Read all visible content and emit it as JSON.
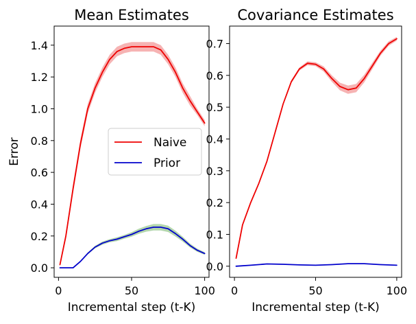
{
  "chart_data": [
    {
      "type": "line",
      "title": "Mean Estimates",
      "xlabel": "Incremental step (t-K)",
      "ylabel": "Error",
      "xlim": [
        -3,
        103
      ],
      "ylim": [
        -0.06,
        1.52
      ],
      "xticks": [
        0,
        50,
        100
      ],
      "yticks": [
        0.0,
        0.2,
        0.4,
        0.6,
        0.8,
        1.0,
        1.2,
        1.4
      ],
      "ytick_labels": [
        "0.0",
        "0.2",
        "0.4",
        "0.6",
        "0.8",
        "1.0",
        "1.2",
        "1.4"
      ],
      "legend": {
        "position": "center-right",
        "entries": [
          "Naive",
          "Prior"
        ]
      },
      "series": [
        {
          "name": "Naive",
          "color": "#ee0000",
          "band_color": "#f4a0a0",
          "x": [
            1,
            5,
            10,
            15,
            20,
            25,
            30,
            35,
            40,
            45,
            50,
            55,
            60,
            65,
            70,
            75,
            80,
            85,
            90,
            95,
            100
          ],
          "y": [
            0.02,
            0.2,
            0.5,
            0.78,
            1.0,
            1.13,
            1.23,
            1.31,
            1.36,
            1.38,
            1.39,
            1.39,
            1.39,
            1.39,
            1.37,
            1.31,
            1.23,
            1.13,
            1.05,
            0.98,
            0.91
          ],
          "spread": [
            0.01,
            0.02,
            0.03,
            0.03,
            0.03,
            0.03,
            0.03,
            0.03,
            0.03,
            0.03,
            0.03,
            0.03,
            0.03,
            0.03,
            0.03,
            0.03,
            0.03,
            0.03,
            0.03,
            0.02,
            0.02
          ]
        },
        {
          "name": "Prior",
          "color": "#0000cc",
          "band_color": "#a0cc98",
          "x": [
            1,
            5,
            10,
            15,
            20,
            25,
            30,
            35,
            40,
            45,
            50,
            55,
            60,
            65,
            70,
            75,
            80,
            85,
            90,
            95,
            100
          ],
          "y": [
            0.0,
            0.0,
            0.0,
            0.04,
            0.09,
            0.13,
            0.155,
            0.17,
            0.18,
            0.195,
            0.21,
            0.23,
            0.245,
            0.255,
            0.255,
            0.245,
            0.215,
            0.18,
            0.14,
            0.11,
            0.09
          ],
          "spread": [
            0.0,
            0.0,
            0.002,
            0.004,
            0.006,
            0.008,
            0.01,
            0.01,
            0.012,
            0.012,
            0.014,
            0.016,
            0.018,
            0.02,
            0.02,
            0.02,
            0.018,
            0.015,
            0.012,
            0.01,
            0.008
          ]
        }
      ]
    },
    {
      "type": "line",
      "title": "Covariance Estimates",
      "xlabel": "Incremental step (t-K)",
      "ylabel": "",
      "xlim": [
        -3,
        103
      ],
      "ylim": [
        -0.035,
        0.755
      ],
      "xticks": [
        0,
        50,
        100
      ],
      "yticks": [
        0.0,
        0.1,
        0.2,
        0.3,
        0.4,
        0.5,
        0.6,
        0.7
      ],
      "ytick_labels": [
        "0.0",
        "0.1",
        "0.2",
        "0.3",
        "0.4",
        "0.5",
        "0.6",
        "0.7"
      ],
      "series": [
        {
          "name": "Naive",
          "color": "#ee0000",
          "band_color": "#f4a0a0",
          "x": [
            1,
            5,
            10,
            15,
            20,
            25,
            30,
            35,
            40,
            45,
            50,
            55,
            60,
            65,
            70,
            75,
            80,
            85,
            90,
            95,
            100
          ],
          "y": [
            0.025,
            0.13,
            0.2,
            0.26,
            0.33,
            0.42,
            0.51,
            0.58,
            0.62,
            0.638,
            0.635,
            0.62,
            0.59,
            0.565,
            0.555,
            0.56,
            0.59,
            0.63,
            0.67,
            0.7,
            0.715
          ],
          "spread": [
            0.002,
            0.003,
            0.004,
            0.004,
            0.004,
            0.004,
            0.004,
            0.005,
            0.005,
            0.006,
            0.006,
            0.008,
            0.01,
            0.012,
            0.013,
            0.013,
            0.012,
            0.01,
            0.008,
            0.007,
            0.006
          ]
        },
        {
          "name": "Prior",
          "color": "#0000cc",
          "band_color": "#a0cc98",
          "x": [
            1,
            10,
            20,
            30,
            40,
            50,
            60,
            70,
            80,
            90,
            100
          ],
          "y": [
            0.0,
            0.003,
            0.007,
            0.006,
            0.004,
            0.003,
            0.005,
            0.008,
            0.008,
            0.005,
            0.003
          ],
          "spread": [
            0.0,
            0.0,
            0.0,
            0.0,
            0.0,
            0.0,
            0.0,
            0.0,
            0.0,
            0.0,
            0.0
          ]
        }
      ]
    }
  ]
}
